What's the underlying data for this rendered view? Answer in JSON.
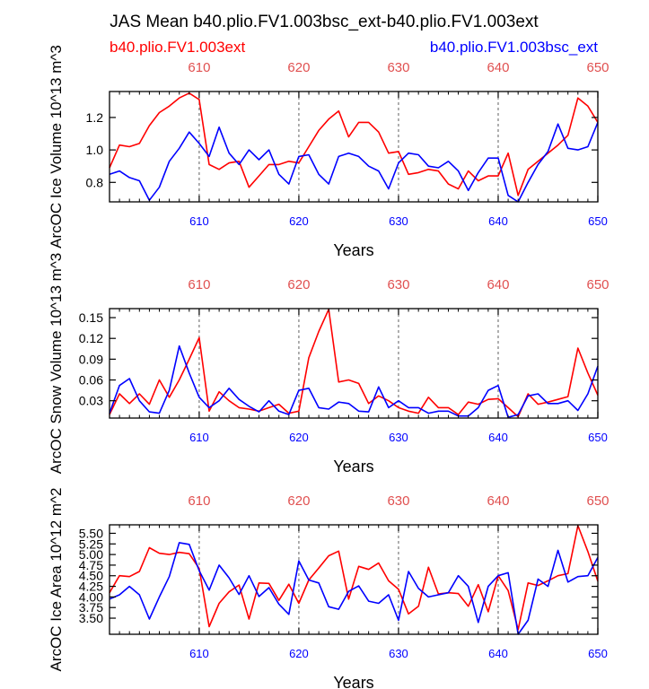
{
  "title": "JAS Mean b40.plio.FV1.003bsc_ext-b40.plio.FV1.003ext",
  "legend": {
    "left": "b40.plio.FV1.003ext",
    "right": "b40.plio.FV1.003bsc_ext",
    "left_color": "#ff0000",
    "right_color": "#0000ff"
  },
  "colors": {
    "series_a": "#ff0000",
    "series_b": "#0000ff",
    "top_ticks": "#e05050",
    "axis": "#000000",
    "gridline": "#606060"
  },
  "chart_data": [
    {
      "type": "line",
      "ylabel": "ArcOC Ice Volume 10^13 m^3",
      "xlabel": "Years",
      "xlim": [
        601,
        650
      ],
      "ylim": [
        0.68,
        1.36
      ],
      "yticks": [
        0.8,
        1.0,
        1.2
      ],
      "ytick_labels": [
        "0.8",
        "1.0",
        "1.2"
      ],
      "xticks": [
        610,
        620,
        630,
        640,
        650
      ],
      "xtick_labels": [
        "610",
        "620",
        "630",
        "640",
        "650"
      ],
      "vlines": [
        610,
        620,
        630,
        640
      ],
      "x": [
        601,
        602,
        603,
        604,
        605,
        606,
        607,
        608,
        609,
        610,
        611,
        612,
        613,
        614,
        615,
        616,
        617,
        618,
        619,
        620,
        621,
        622,
        623,
        624,
        625,
        626,
        627,
        628,
        629,
        630,
        631,
        632,
        633,
        634,
        635,
        636,
        637,
        638,
        639,
        640,
        641,
        642,
        643,
        644,
        645,
        646,
        647,
        648,
        649,
        650
      ],
      "series": [
        {
          "name": "b40.plio.FV1.003ext",
          "color": "#ff0000",
          "values": [
            0.89,
            1.03,
            1.02,
            1.04,
            1.15,
            1.23,
            1.27,
            1.32,
            1.35,
            1.31,
            0.91,
            0.88,
            0.92,
            0.93,
            0.77,
            0.84,
            0.91,
            0.91,
            0.93,
            0.92,
            1.02,
            1.12,
            1.19,
            1.24,
            1.08,
            1.17,
            1.17,
            1.11,
            0.98,
            0.99,
            0.85,
            0.86,
            0.88,
            0.87,
            0.79,
            0.76,
            0.87,
            0.81,
            0.84,
            0.84,
            0.98,
            0.72,
            0.88,
            0.93,
            0.98,
            1.03,
            1.09,
            1.32,
            1.27,
            1.17
          ]
        },
        {
          "name": "b40.plio.FV1.003bsc_ext",
          "color": "#0000ff",
          "values": [
            0.85,
            0.87,
            0.83,
            0.81,
            0.69,
            0.77,
            0.93,
            1.01,
            1.11,
            1.04,
            0.96,
            1.14,
            0.98,
            0.91,
            1.0,
            0.94,
            1.0,
            0.85,
            0.79,
            0.96,
            0.97,
            0.85,
            0.79,
            0.96,
            0.98,
            0.96,
            0.9,
            0.87,
            0.76,
            0.92,
            0.98,
            0.97,
            0.9,
            0.89,
            0.93,
            0.87,
            0.75,
            0.86,
            0.95,
            0.95,
            0.72,
            0.68,
            0.8,
            0.91,
            0.99,
            1.16,
            1.01,
            1.0,
            1.02,
            1.17
          ]
        }
      ]
    },
    {
      "type": "line",
      "ylabel": "ArcOC Snow Volume 10^13 m^3",
      "xlabel": "Years",
      "xlim": [
        601,
        650
      ],
      "ylim": [
        0.005,
        0.163
      ],
      "yticks": [
        0.03,
        0.06,
        0.09,
        0.12,
        0.15
      ],
      "ytick_labels": [
        "0.03",
        "0.06",
        "0.09",
        "0.12",
        "0.15"
      ],
      "xticks": [
        610,
        620,
        630,
        640,
        650
      ],
      "xtick_labels": [
        "610",
        "620",
        "630",
        "640",
        "650"
      ],
      "vlines": [
        610,
        620,
        630,
        640
      ],
      "x": [
        601,
        602,
        603,
        604,
        605,
        606,
        607,
        608,
        609,
        610,
        611,
        612,
        613,
        614,
        615,
        616,
        617,
        618,
        619,
        620,
        621,
        622,
        623,
        624,
        625,
        626,
        627,
        628,
        629,
        630,
        631,
        632,
        633,
        634,
        635,
        636,
        637,
        638,
        639,
        640,
        641,
        642,
        643,
        644,
        645,
        646,
        647,
        648,
        649,
        650
      ],
      "series": [
        {
          "name": "b40.plio.FV1.003ext",
          "color": "#ff0000",
          "values": [
            0.01,
            0.04,
            0.026,
            0.04,
            0.025,
            0.06,
            0.035,
            0.06,
            0.09,
            0.121,
            0.015,
            0.043,
            0.03,
            0.02,
            0.018,
            0.015,
            0.02,
            0.025,
            0.012,
            0.015,
            0.092,
            0.13,
            0.162,
            0.057,
            0.06,
            0.055,
            0.026,
            0.037,
            0.03,
            0.02,
            0.015,
            0.012,
            0.035,
            0.02,
            0.02,
            0.01,
            0.028,
            0.025,
            0.032,
            0.033,
            0.02,
            0.007,
            0.04,
            0.025,
            0.028,
            0.032,
            0.036,
            0.106,
            0.07,
            0.038
          ]
        },
        {
          "name": "b40.plio.FV1.003bsc_ext",
          "color": "#0000ff",
          "values": [
            0.012,
            0.052,
            0.062,
            0.03,
            0.014,
            0.012,
            0.045,
            0.109,
            0.07,
            0.035,
            0.02,
            0.03,
            0.048,
            0.032,
            0.022,
            0.014,
            0.03,
            0.015,
            0.01,
            0.045,
            0.048,
            0.02,
            0.018,
            0.028,
            0.026,
            0.015,
            0.014,
            0.05,
            0.02,
            0.03,
            0.02,
            0.02,
            0.012,
            0.015,
            0.015,
            0.008,
            0.008,
            0.02,
            0.045,
            0.052,
            0.006,
            0.01,
            0.037,
            0.04,
            0.026,
            0.026,
            0.03,
            0.016,
            0.04,
            0.08
          ]
        }
      ]
    },
    {
      "type": "line",
      "ylabel": "ArcOC Ice Area 10^12 m^2",
      "xlabel": "Years",
      "xlim": [
        601,
        650
      ],
      "ylim": [
        3.12,
        5.7
      ],
      "yticks": [
        3.5,
        3.75,
        4.0,
        4.25,
        4.5,
        4.75,
        5.0,
        5.25,
        5.5
      ],
      "ytick_labels": [
        "3.50",
        "3.75",
        "4.00",
        "4.25",
        "4.50",
        "4.75",
        "5.00",
        "5.25",
        "5.50"
      ],
      "xticks": [
        610,
        620,
        630,
        640,
        650
      ],
      "xtick_labels": [
        "610",
        "620",
        "630",
        "640",
        "650"
      ],
      "vlines": [
        610,
        620,
        630,
        640
      ],
      "x": [
        601,
        602,
        603,
        604,
        605,
        606,
        607,
        608,
        609,
        610,
        611,
        612,
        613,
        614,
        615,
        616,
        617,
        618,
        619,
        620,
        621,
        622,
        623,
        624,
        625,
        626,
        627,
        628,
        629,
        630,
        631,
        632,
        633,
        634,
        635,
        636,
        637,
        638,
        639,
        640,
        641,
        642,
        643,
        644,
        645,
        646,
        647,
        648,
        649,
        650
      ],
      "series": [
        {
          "name": "b40.plio.FV1.003ext",
          "color": "#ff0000",
          "values": [
            4.1,
            4.5,
            4.48,
            4.6,
            5.16,
            5.03,
            5.0,
            5.05,
            5.02,
            4.67,
            3.3,
            3.85,
            4.12,
            4.28,
            3.48,
            4.33,
            4.32,
            3.92,
            4.3,
            3.85,
            4.4,
            4.68,
            4.97,
            5.08,
            3.95,
            4.72,
            4.65,
            4.8,
            4.38,
            4.18,
            3.6,
            3.78,
            4.7,
            4.07,
            4.1,
            4.08,
            3.78,
            4.29,
            3.65,
            4.5,
            4.15,
            3.23,
            4.33,
            4.27,
            4.38,
            4.5,
            4.55,
            5.68,
            5.07,
            4.37
          ]
        },
        {
          "name": "b40.plio.FV1.003bsc_ext",
          "color": "#0000ff",
          "values": [
            3.95,
            4.05,
            4.25,
            4.05,
            3.48,
            4.0,
            4.48,
            5.28,
            5.24,
            4.62,
            4.16,
            4.75,
            4.45,
            4.06,
            4.5,
            4.01,
            4.22,
            3.83,
            3.59,
            4.85,
            4.4,
            4.33,
            3.77,
            3.71,
            4.13,
            4.26,
            3.9,
            3.85,
            4.05,
            3.45,
            4.6,
            4.2,
            4.0,
            4.05,
            4.1,
            4.5,
            4.25,
            3.4,
            4.25,
            4.5,
            4.57,
            3.12,
            3.45,
            4.42,
            4.25,
            5.1,
            4.35,
            4.48,
            4.5,
            4.93
          ]
        }
      ]
    }
  ]
}
